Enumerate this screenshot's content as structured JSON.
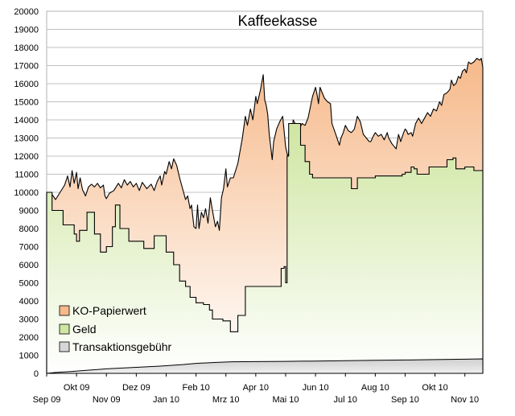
{
  "chart_data": {
    "type": "area",
    "title": "Kaffeekasse",
    "xlabel": "",
    "ylabel": "",
    "ylim": [
      0,
      20000
    ],
    "ytick_step": 1000,
    "xlim": [
      0,
      14.6
    ],
    "xticks": [
      {
        "x": 0.0,
        "label": "Sep 09"
      },
      {
        "x": 1.0,
        "label": "Okt 09"
      },
      {
        "x": 2.0,
        "label": "Nov 09"
      },
      {
        "x": 3.0,
        "label": "Dez 09"
      },
      {
        "x": 4.0,
        "label": "Jan 10"
      },
      {
        "x": 5.0,
        "label": "Feb 10"
      },
      {
        "x": 6.0,
        "label": "Mrz 10"
      },
      {
        "x": 7.0,
        "label": "Apr 10"
      },
      {
        "x": 8.0,
        "label": "Mai 10"
      },
      {
        "x": 9.0,
        "label": "Jun 10"
      },
      {
        "x": 10.0,
        "label": "Jul 10"
      },
      {
        "x": 11.0,
        "label": "Aug 10"
      },
      {
        "x": 12.0,
        "label": "Sep 10"
      },
      {
        "x": 13.0,
        "label": "Okt 10"
      },
      {
        "x": 14.0,
        "label": "Nov 10"
      }
    ],
    "legend_position": "bottom-left",
    "colors": {
      "papier": "#f6b98a",
      "geld": "#cfe6a2",
      "gebuehr": "#d6d6d6",
      "line": "#000000",
      "grid": "#c0c0c0"
    },
    "series": [
      {
        "name": "KO-Papierwert",
        "step": false,
        "points": [
          [
            0.0,
            10000
          ],
          [
            0.15,
            9950
          ],
          [
            0.3,
            9600
          ],
          [
            0.45,
            10000
          ],
          [
            0.6,
            10400
          ],
          [
            0.7,
            10900
          ],
          [
            0.78,
            10300
          ],
          [
            0.85,
            11200
          ],
          [
            0.92,
            10500
          ],
          [
            1.0,
            11100
          ],
          [
            1.05,
            10200
          ],
          [
            1.12,
            10800
          ],
          [
            1.2,
            10150
          ],
          [
            1.3,
            9800
          ],
          [
            1.4,
            10300
          ],
          [
            1.5,
            10450
          ],
          [
            1.6,
            10300
          ],
          [
            1.7,
            10500
          ],
          [
            1.8,
            10250
          ],
          [
            1.9,
            10400
          ],
          [
            1.95,
            9800
          ],
          [
            2.0,
            9650
          ],
          [
            2.1,
            9950
          ],
          [
            2.25,
            10100
          ],
          [
            2.4,
            10500
          ],
          [
            2.5,
            10250
          ],
          [
            2.6,
            10700
          ],
          [
            2.7,
            10400
          ],
          [
            2.8,
            10600
          ],
          [
            2.9,
            10300
          ],
          [
            3.0,
            10500
          ],
          [
            3.1,
            10100
          ],
          [
            3.2,
            10550
          ],
          [
            3.35,
            10200
          ],
          [
            3.5,
            10450
          ],
          [
            3.6,
            10100
          ],
          [
            3.7,
            10600
          ],
          [
            3.8,
            10900
          ],
          [
            3.85,
            10400
          ],
          [
            3.95,
            11150
          ],
          [
            4.0,
            11000
          ],
          [
            4.1,
            11700
          ],
          [
            4.18,
            11300
          ],
          [
            4.25,
            11850
          ],
          [
            4.35,
            11500
          ],
          [
            4.45,
            10800
          ],
          [
            4.55,
            10200
          ],
          [
            4.65,
            9600
          ],
          [
            4.72,
            9800
          ],
          [
            4.8,
            9100
          ],
          [
            4.85,
            9300
          ],
          [
            4.93,
            8100
          ],
          [
            5.0,
            8000
          ],
          [
            5.05,
            9300
          ],
          [
            5.1,
            8000
          ],
          [
            5.18,
            8900
          ],
          [
            5.25,
            8600
          ],
          [
            5.32,
            9100
          ],
          [
            5.4,
            8300
          ],
          [
            5.48,
            9700
          ],
          [
            5.55,
            9000
          ],
          [
            5.65,
            8100
          ],
          [
            5.72,
            8400
          ],
          [
            5.78,
            7900
          ],
          [
            5.85,
            9700
          ],
          [
            5.92,
            10200
          ],
          [
            6.0,
            11300
          ],
          [
            6.05,
            10300
          ],
          [
            6.15,
            10800
          ],
          [
            6.25,
            10800
          ],
          [
            6.4,
            11600
          ],
          [
            6.55,
            13000
          ],
          [
            6.65,
            14200
          ],
          [
            6.72,
            13700
          ],
          [
            6.82,
            14600
          ],
          [
            6.9,
            14000
          ],
          [
            7.0,
            15300
          ],
          [
            7.05,
            14900
          ],
          [
            7.15,
            15600
          ],
          [
            7.25,
            16500
          ],
          [
            7.3,
            15100
          ],
          [
            7.35,
            14800
          ],
          [
            7.4,
            14300
          ],
          [
            7.45,
            13200
          ],
          [
            7.55,
            11800
          ],
          [
            7.6,
            12800
          ],
          [
            7.7,
            13500
          ],
          [
            7.8,
            13900
          ],
          [
            7.9,
            14200
          ],
          [
            8.0,
            12500
          ],
          [
            8.08,
            11900
          ],
          [
            8.15,
            13100
          ],
          [
            8.2,
            13000
          ],
          [
            8.25,
            14000
          ],
          [
            8.35,
            13700
          ],
          [
            8.45,
            13500
          ],
          [
            8.55,
            13800
          ],
          [
            8.65,
            13700
          ],
          [
            8.75,
            14100
          ],
          [
            8.9,
            15300
          ],
          [
            9.0,
            15800
          ],
          [
            9.05,
            15400
          ],
          [
            9.1,
            14900
          ],
          [
            9.15,
            15800
          ],
          [
            9.2,
            15600
          ],
          [
            9.3,
            15200
          ],
          [
            9.4,
            15000
          ],
          [
            9.5,
            14900
          ],
          [
            9.55,
            13800
          ],
          [
            9.7,
            13100
          ],
          [
            9.8,
            12600
          ],
          [
            9.85,
            13000
          ],
          [
            9.93,
            13300
          ],
          [
            10.0,
            13700
          ],
          [
            10.1,
            13400
          ],
          [
            10.2,
            13300
          ],
          [
            10.3,
            13500
          ],
          [
            10.4,
            14200
          ],
          [
            10.5,
            13900
          ],
          [
            10.6,
            13200
          ],
          [
            10.7,
            13000
          ],
          [
            10.8,
            12800
          ],
          [
            10.85,
            12800
          ],
          [
            10.93,
            13100
          ],
          [
            11.0,
            13300
          ],
          [
            11.1,
            13100
          ],
          [
            11.2,
            13200
          ],
          [
            11.3,
            12900
          ],
          [
            11.4,
            13300
          ],
          [
            11.45,
            13000
          ],
          [
            11.55,
            12700
          ],
          [
            11.65,
            12500
          ],
          [
            11.7,
            12400
          ],
          [
            11.78,
            13200
          ],
          [
            11.85,
            12800
          ],
          [
            11.95,
            13300
          ],
          [
            12.0,
            13500
          ],
          [
            12.05,
            13400
          ],
          [
            12.1,
            13200
          ],
          [
            12.2,
            13300
          ],
          [
            12.25,
            13100
          ],
          [
            12.35,
            13800
          ],
          [
            12.45,
            14100
          ],
          [
            12.55,
            13800
          ],
          [
            12.65,
            14100
          ],
          [
            12.75,
            14400
          ],
          [
            12.85,
            14200
          ],
          [
            12.95,
            14600
          ],
          [
            13.05,
            14500
          ],
          [
            13.15,
            15000
          ],
          [
            13.22,
            14800
          ],
          [
            13.3,
            15400
          ],
          [
            13.4,
            15500
          ],
          [
            13.5,
            15700
          ],
          [
            13.55,
            16200
          ],
          [
            13.62,
            15900
          ],
          [
            13.7,
            16000
          ],
          [
            13.78,
            16400
          ],
          [
            13.85,
            16300
          ],
          [
            13.92,
            16700
          ],
          [
            14.0,
            16800
          ],
          [
            14.05,
            16600
          ],
          [
            14.12,
            17200
          ],
          [
            14.2,
            17100
          ],
          [
            14.3,
            17200
          ],
          [
            14.4,
            17400
          ],
          [
            14.5,
            17300
          ],
          [
            14.55,
            17400
          ],
          [
            14.6,
            16900
          ]
        ]
      },
      {
        "name": "Geld",
        "step": true,
        "points": [
          [
            0.0,
            10000
          ],
          [
            0.18,
            9000
          ],
          [
            0.55,
            8200
          ],
          [
            0.92,
            7700
          ],
          [
            1.0,
            7300
          ],
          [
            1.1,
            7900
          ],
          [
            1.35,
            8900
          ],
          [
            1.6,
            7700
          ],
          [
            1.8,
            6700
          ],
          [
            2.0,
            7000
          ],
          [
            2.2,
            8100
          ],
          [
            2.3,
            9300
          ],
          [
            2.45,
            8000
          ],
          [
            2.75,
            7300
          ],
          [
            3.25,
            6900
          ],
          [
            3.6,
            7600
          ],
          [
            4.0,
            6700
          ],
          [
            4.25,
            6000
          ],
          [
            4.45,
            5100
          ],
          [
            4.65,
            4800
          ],
          [
            4.8,
            4200
          ],
          [
            5.0,
            3900
          ],
          [
            5.25,
            3800
          ],
          [
            5.45,
            3500
          ],
          [
            5.55,
            3000
          ],
          [
            5.8,
            3000
          ],
          [
            5.9,
            2900
          ],
          [
            6.15,
            2300
          ],
          [
            6.3,
            2300
          ],
          [
            6.4,
            3200
          ],
          [
            6.65,
            4800
          ],
          [
            7.0,
            4800
          ],
          [
            7.8,
            4800
          ],
          [
            7.85,
            5800
          ],
          [
            7.95,
            5900
          ],
          [
            8.0,
            5000
          ],
          [
            8.05,
            12000
          ],
          [
            8.1,
            13800
          ],
          [
            8.45,
            13800
          ],
          [
            8.5,
            12600
          ],
          [
            8.65,
            11700
          ],
          [
            8.8,
            11000
          ],
          [
            8.9,
            10800
          ],
          [
            9.3,
            10800
          ],
          [
            10.2,
            10200
          ],
          [
            10.4,
            10800
          ],
          [
            11.0,
            10900
          ],
          [
            11.5,
            10900
          ],
          [
            11.9,
            11000
          ],
          [
            12.0,
            11100
          ],
          [
            12.2,
            11400
          ],
          [
            12.3,
            11300
          ],
          [
            12.4,
            11000
          ],
          [
            12.6,
            11000
          ],
          [
            12.8,
            11400
          ],
          [
            13.0,
            11400
          ],
          [
            13.4,
            11800
          ],
          [
            13.6,
            11900
          ],
          [
            13.7,
            11300
          ],
          [
            14.0,
            11400
          ],
          [
            14.3,
            11200
          ],
          [
            14.6,
            11200
          ]
        ]
      },
      {
        "name": "Transaktionsgebühr",
        "step": false,
        "points": [
          [
            0.0,
            0
          ],
          [
            0.3,
            50
          ],
          [
            0.8,
            100
          ],
          [
            1.2,
            150
          ],
          [
            1.6,
            200
          ],
          [
            2.0,
            250
          ],
          [
            2.6,
            300
          ],
          [
            3.2,
            350
          ],
          [
            3.8,
            400
          ],
          [
            4.5,
            480
          ],
          [
            5.0,
            550
          ],
          [
            5.6,
            600
          ],
          [
            6.2,
            640
          ],
          [
            7.0,
            650
          ],
          [
            8.0,
            660
          ],
          [
            9.0,
            680
          ],
          [
            10.0,
            700
          ],
          [
            11.0,
            720
          ],
          [
            12.0,
            740
          ],
          [
            13.0,
            760
          ],
          [
            14.0,
            780
          ],
          [
            14.6,
            800
          ]
        ]
      }
    ]
  }
}
